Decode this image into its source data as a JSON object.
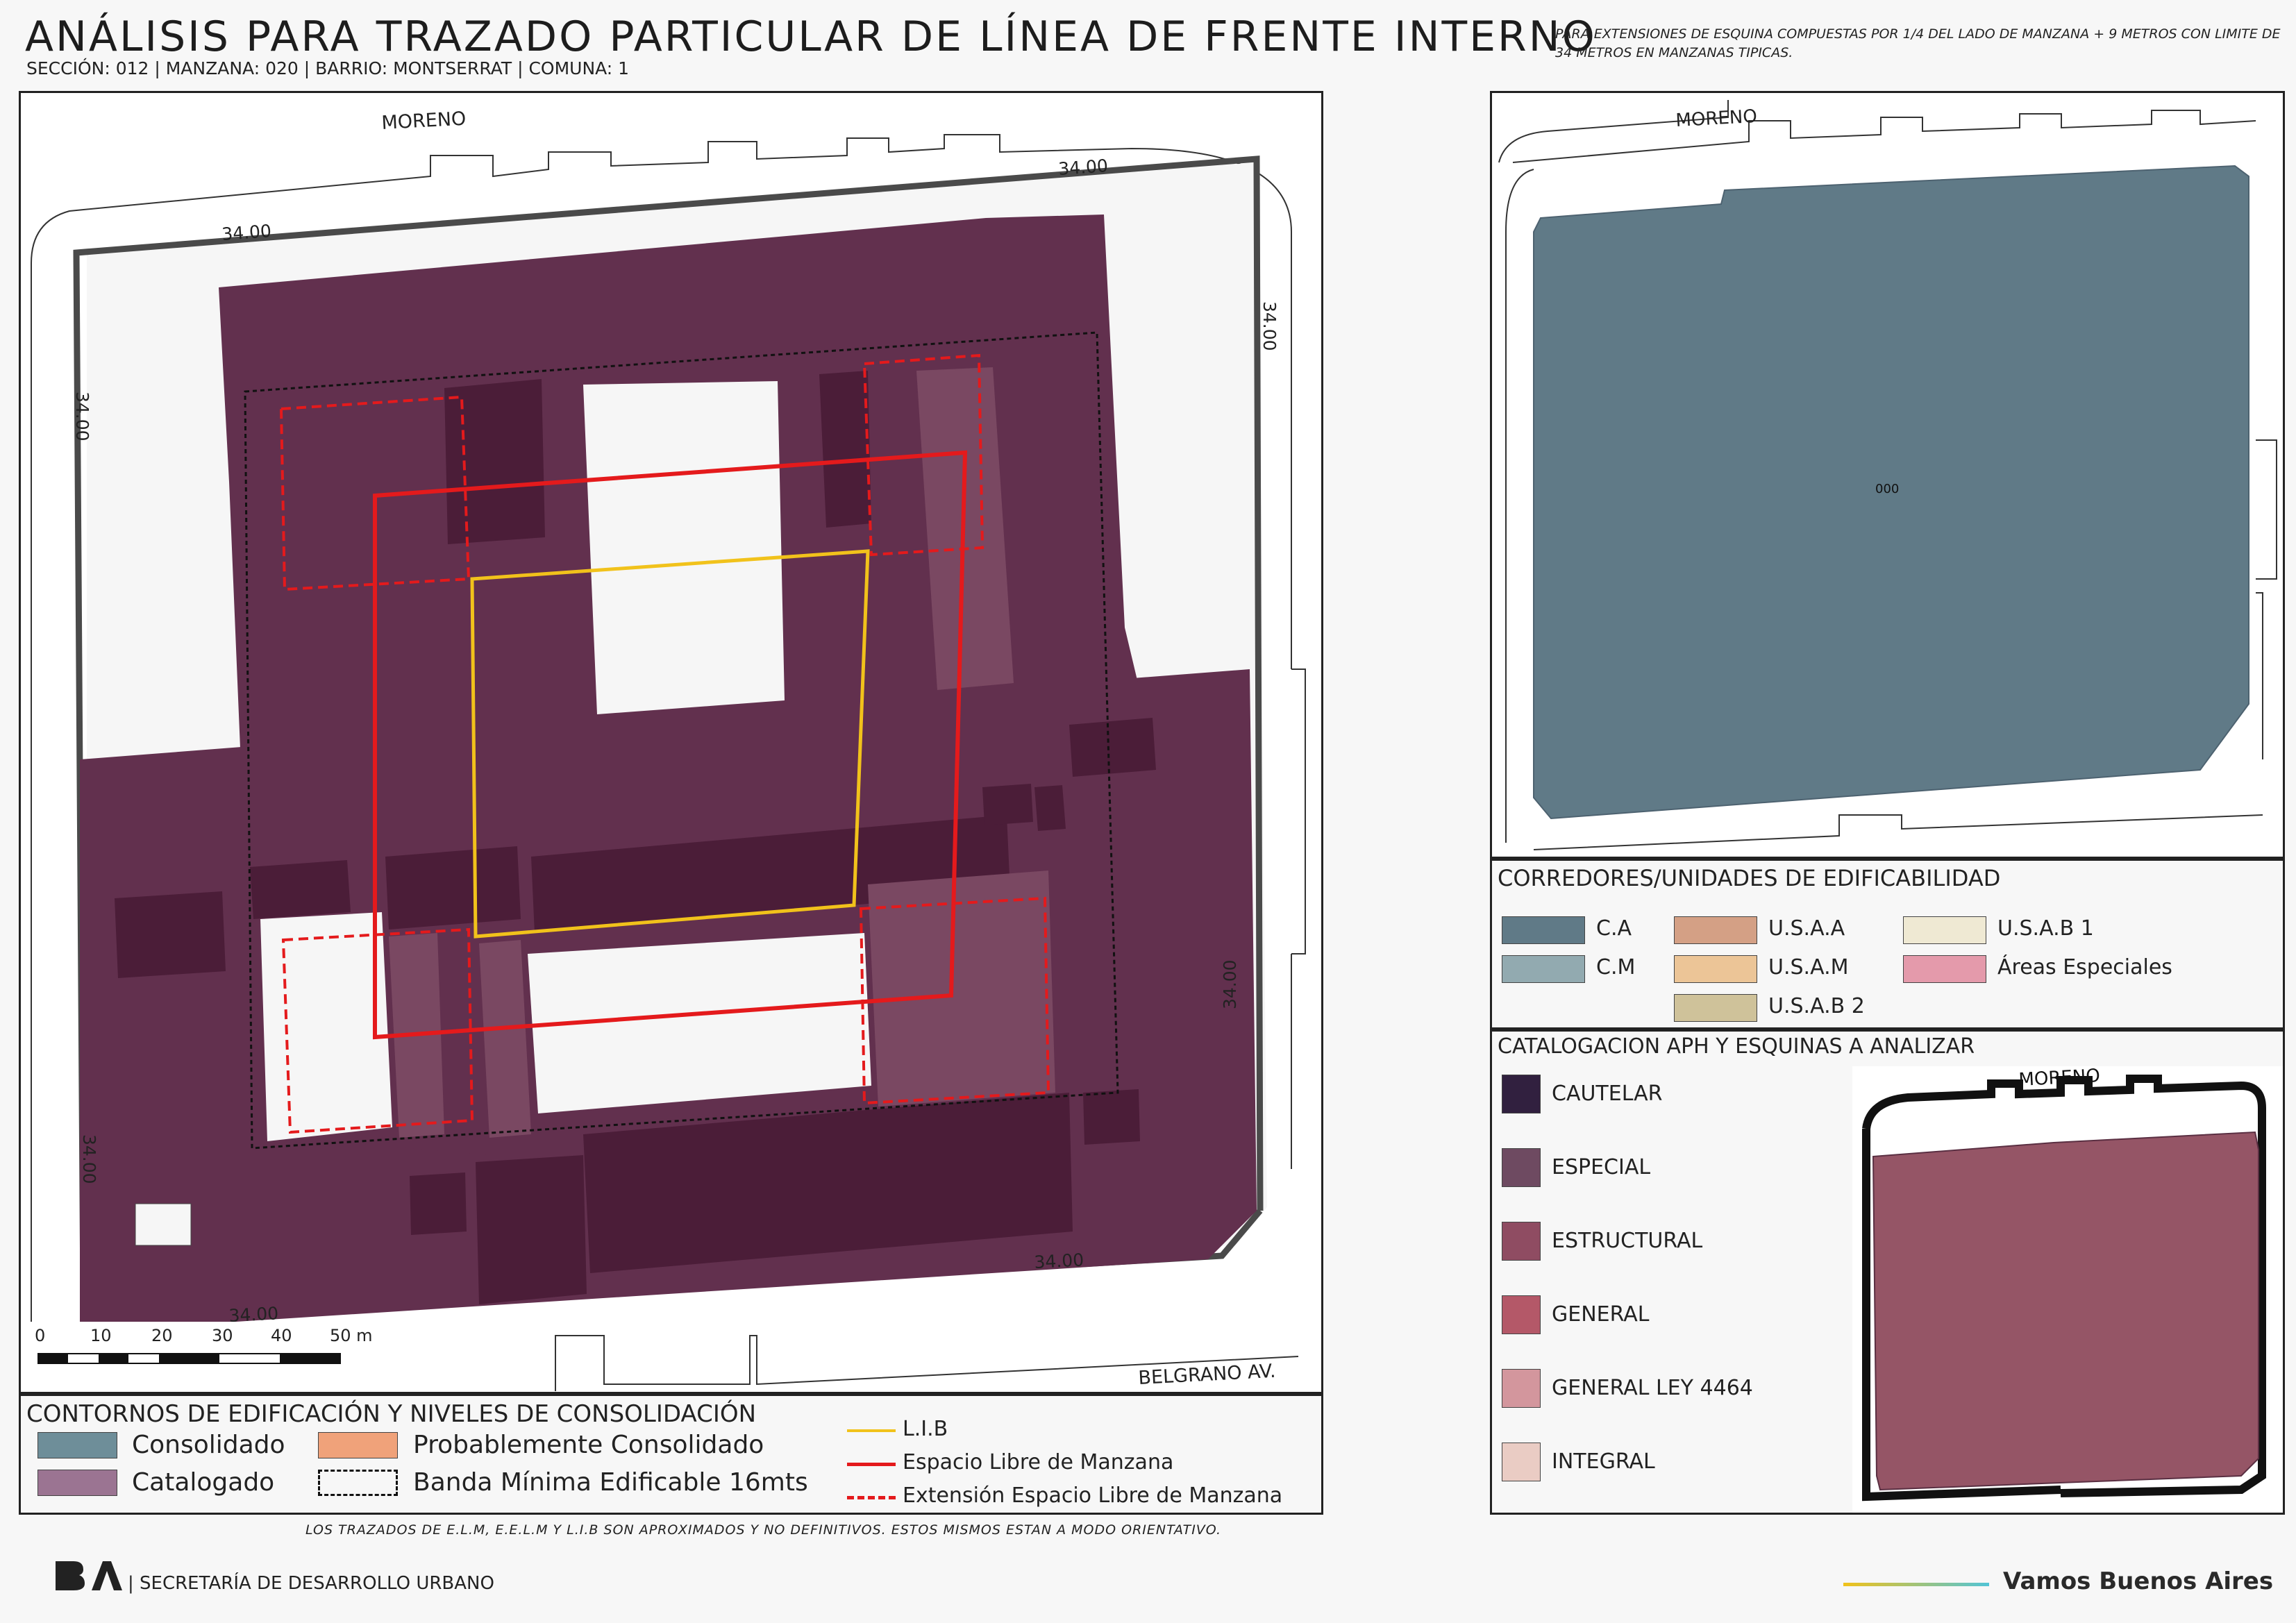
{
  "header": {
    "title": "ANÁLISIS PARA TRAZADO PARTICULAR DE LÍNEA DE FRENTE INTERNO",
    "subtitle": "SECCIÓN: 012 |  MANZANA: 020 | BARRIO: MONTSERRAT | COMUNA: 1",
    "note": "PARA EXTENSIONES DE ESQUINA COMPUESTAS POR 1/4 DEL LADO DE MANZANA + 9 METROS CON LIMITE DE 34 METROS EN MANZANAS TIPICAS."
  },
  "main_map": {
    "street_top": "MORENO",
    "street_bottom": "BELGRANO AV.",
    "dim_top_left": "34.00",
    "dim_top_right": "34.00",
    "dim_right_top": "34.00",
    "dim_left_top": "34.00",
    "dim_right_bottom": "34.00",
    "dim_left_bottom": "34.00",
    "dim_bottom_right": "34.00",
    "dim_bottom_left": "34.00",
    "scale_ticks": [
      "0",
      "10",
      "20",
      "30",
      "40",
      "50 m"
    ]
  },
  "legend_main": {
    "title": "CONTORNOS DE EDIFICACIÓN Y NIVELES DE CONSOLIDACIÓN",
    "consolidado": "Consolidado",
    "probablemente": "Probablemente Consolidado",
    "catalogado": "Catalogado",
    "banda": "Banda Mínima Edificable 16mts",
    "lib": "L.I.B",
    "elm": "Espacio Libre de Manzana",
    "eelm": "Extensión Espacio Libre de Manzana"
  },
  "colors": {
    "consolidado": "#6e8e99",
    "probablemente": "#f0a27a",
    "catalogado": "#9b7492",
    "building": "#62304e",
    "building_dark": "#4b1d38",
    "building_light": "#7a4862",
    "ca": "#607a87",
    "cm": "#92aab0",
    "usaa": "#d4a085",
    "usam": "#ecc597",
    "usab1": "#efe9d3",
    "usab2": "#cfc29a",
    "areas_especiales": "#e49aab",
    "cautelar": "#31203f",
    "especial": "#6e4a61",
    "estructural": "#8f4c62",
    "general": "#b45868",
    "general_ley": "#d3969d",
    "integral": "#eaccc4",
    "lib_line": "#f1c21b",
    "elm_line": "#e41a1c"
  },
  "map_corredores": {
    "street_top": "MORENO",
    "label_center": "000"
  },
  "legend_corredores": {
    "title": "CORREDORES/UNIDADES DE EDIFICABILIDAD",
    "items": [
      "C.A",
      "C.M",
      "U.S.A.A",
      "U.S.A.M",
      "U.S.A.B 2",
      "U.S.A.B 1",
      "Áreas Especiales"
    ]
  },
  "legend_aph": {
    "title": "CATALOGACION APH Y ESQUINAS A ANALIZAR",
    "items": [
      "CAUTELAR",
      "ESPECIAL",
      "ESTRUCTURAL",
      "GENERAL",
      "GENERAL LEY 4464",
      "INTEGRAL"
    ],
    "mini_map_street": "MORENO"
  },
  "footer": {
    "note": "LOS TRAZADOS DE E.L.M, E.E.L.M Y L.I.B SON APROXIMADOS Y NO DEFINITIVOS. ESTOS MISMOS ESTAN A MODO ORIENTATIVO.",
    "logo": "BA",
    "org": "| SECRETARÍA DE DESARROLLO URBANO",
    "slogan": "Vamos Buenos Aires"
  }
}
